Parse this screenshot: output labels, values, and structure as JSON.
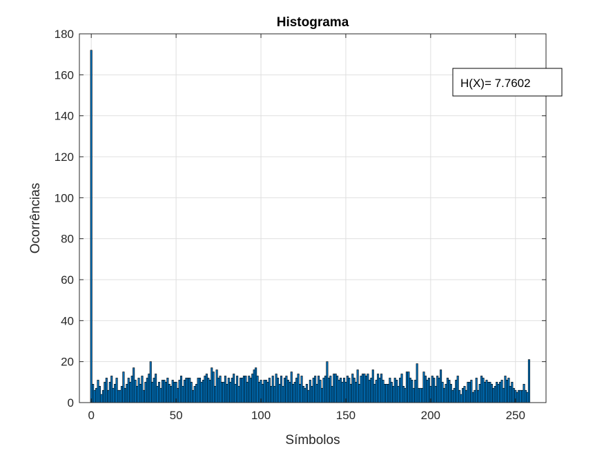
{
  "chart_data": {
    "type": "bar",
    "title": "Histograma",
    "xlabel": "Símbolos",
    "ylabel": "Ocorrências",
    "xlim": [
      -7,
      268
    ],
    "ylim": [
      0,
      180
    ],
    "xticks": [
      0,
      50,
      100,
      150,
      200,
      250
    ],
    "yticks": [
      0,
      20,
      40,
      60,
      80,
      100,
      120,
      140,
      160,
      180
    ],
    "grid": true,
    "bar_color": "#0072BD",
    "bar_edge_color": "#000000",
    "annotation": {
      "text": "H(X)= 7.7602",
      "position": "top-right"
    },
    "x_start": 0,
    "values": [
      172,
      9,
      6,
      7,
      11,
      8,
      4,
      6,
      10,
      12,
      6,
      10,
      13,
      7,
      9,
      12,
      6,
      6,
      8,
      15,
      7,
      9,
      12,
      10,
      13,
      17,
      11,
      8,
      12,
      9,
      13,
      6,
      10,
      12,
      14,
      20,
      10,
      12,
      14,
      8,
      10,
      7,
      11,
      11,
      10,
      12,
      9,
      8,
      11,
      10,
      10,
      7,
      11,
      13,
      8,
      11,
      12,
      12,
      12,
      10,
      6,
      8,
      9,
      12,
      12,
      10,
      11,
      13,
      14,
      12,
      11,
      17,
      15,
      8,
      16,
      12,
      13,
      10,
      10,
      13,
      9,
      12,
      10,
      12,
      14,
      9,
      13,
      8,
      12,
      12,
      13,
      13,
      10,
      13,
      12,
      14,
      16,
      17,
      13,
      10,
      11,
      9,
      11,
      11,
      10,
      12,
      8,
      13,
      8,
      14,
      12,
      9,
      13,
      8,
      12,
      13,
      11,
      10,
      15,
      9,
      10,
      12,
      14,
      9,
      13,
      8,
      7,
      9,
      6,
      11,
      8,
      12,
      13,
      9,
      13,
      11,
      7,
      12,
      13,
      20,
      12,
      13,
      8,
      14,
      14,
      13,
      11,
      12,
      10,
      12,
      10,
      13,
      12,
      9,
      14,
      12,
      10,
      16,
      9,
      13,
      14,
      14,
      13,
      14,
      11,
      12,
      16,
      9,
      11,
      14,
      12,
      14,
      11,
      9,
      9,
      9,
      12,
      10,
      8,
      12,
      11,
      8,
      12,
      14,
      8,
      7,
      15,
      15,
      12,
      11,
      7,
      11,
      19,
      7,
      7,
      7,
      15,
      13,
      11,
      12,
      8,
      13,
      12,
      8,
      13,
      12,
      16,
      10,
      7,
      9,
      12,
      11,
      9,
      6,
      7,
      11,
      13,
      6,
      4,
      7,
      8,
      6,
      10,
      10,
      11,
      5,
      6,
      12,
      6,
      9,
      13,
      12,
      10,
      11,
      10,
      10,
      9,
      7,
      8,
      10,
      9,
      10,
      11,
      7,
      13,
      11,
      12,
      8,
      10,
      7,
      6,
      5,
      6,
      6,
      6,
      9,
      6,
      5,
      21
    ]
  }
}
